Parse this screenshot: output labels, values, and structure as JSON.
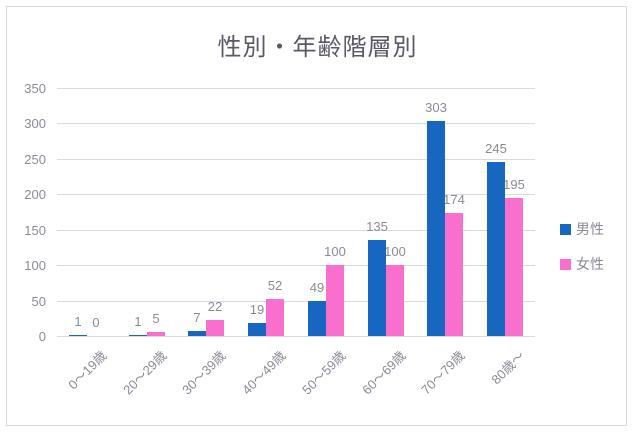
{
  "chart_data": {
    "type": "bar",
    "title": "性別・年齢階層別",
    "categories": [
      "0〜19歳",
      "20〜29歳",
      "30〜39歳",
      "40〜49歳",
      "50〜59歳",
      "60〜69歳",
      "70〜79歳",
      "80歳〜"
    ],
    "series": [
      {
        "name": "男性",
        "color": "#1767c1",
        "values": [
          1,
          1,
          7,
          19,
          49,
          135,
          303,
          245
        ]
      },
      {
        "name": "女性",
        "color": "#f96fcd",
        "values": [
          0,
          5,
          22,
          52,
          100,
          100,
          174,
          195
        ]
      }
    ],
    "xlabel": "",
    "ylabel": "",
    "ylim": [
      0,
      350
    ],
    "yticks": [
      0,
      50,
      100,
      150,
      200,
      250,
      300,
      350
    ],
    "grid": "horizontal",
    "legend_position": "right",
    "data_labels": "outside-end, drawn behind bars"
  },
  "colors": {
    "male_bar": "#1767c1",
    "female_bar": "#f96fcd",
    "gridline": "#d9d9df",
    "tick_text": "#8a8a97",
    "title_text": "#595966",
    "frame_border": "#d6d6dc",
    "background": "#ffffff"
  }
}
